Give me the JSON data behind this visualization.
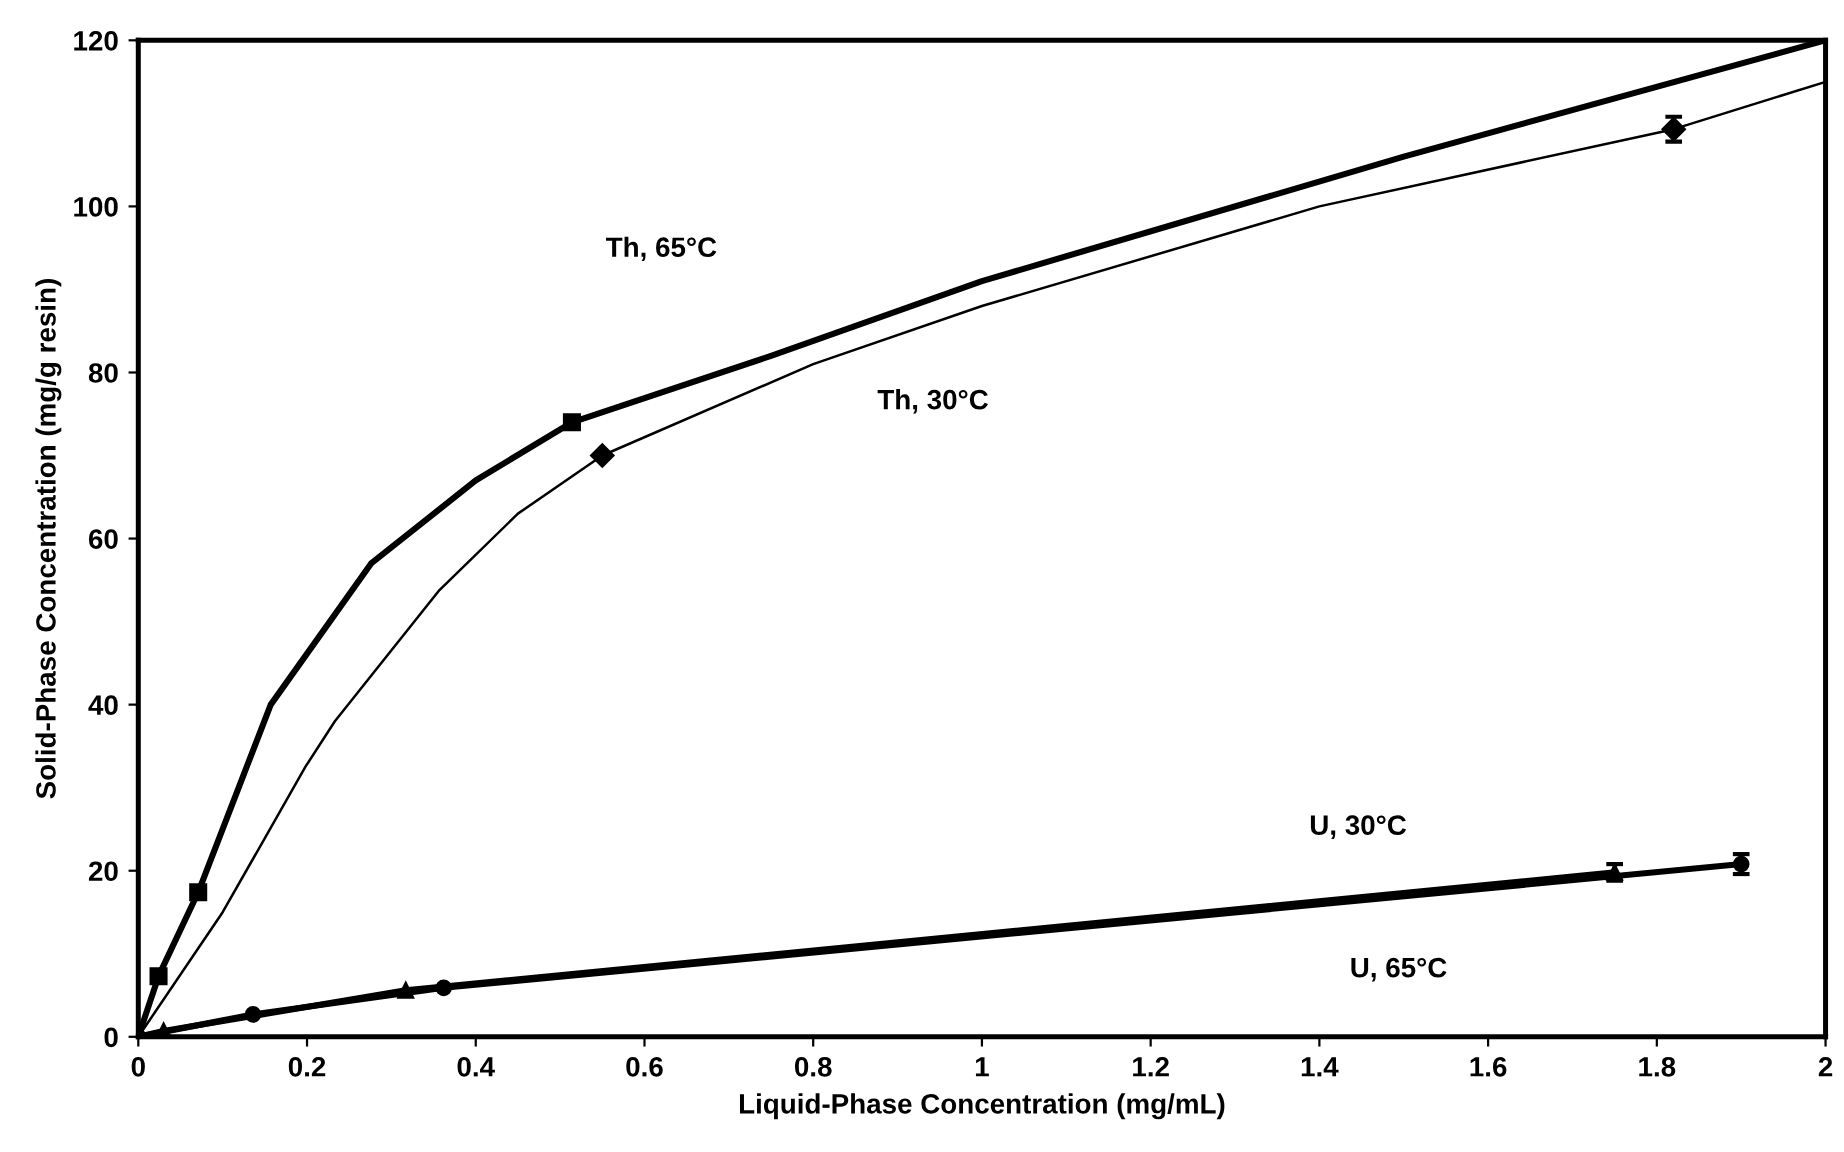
{
  "chart_data": {
    "type": "line",
    "xlabel": "Liquid-Phase Concentration (mg/mL)",
    "ylabel": "Solid-Phase Concentration (mg/g resin)",
    "xlim": [
      0,
      2
    ],
    "ylim": [
      0,
      120
    ],
    "xticks": [
      0,
      0.2,
      0.4,
      0.6,
      0.8,
      1,
      1.2,
      1.4,
      1.6,
      1.8,
      2
    ],
    "yticks": [
      0,
      20,
      40,
      60,
      80,
      100,
      120
    ],
    "grid": false,
    "legend": false,
    "series": [
      {
        "color": "#000000",
        "marker": "none",
        "x": [
          0,
          0.024,
          0.071,
          0.157,
          0.276,
          0.4,
          0.514,
          0.75,
          1.0,
          1.5,
          2.0
        ],
        "values": [
          0,
          7.3,
          17.4,
          40,
          57,
          67,
          74,
          82,
          91,
          106,
          120
        ]
      },
      {
        "type": "scatter",
        "color": "#000000",
        "marker": "square",
        "x": [
          0.024,
          0.071,
          0.514
        ],
        "values": [
          7.3,
          17.4,
          74
        ]
      },
      {
        "color": "#000000",
        "marker": "none",
        "x": [
          0,
          0.1,
          0.198,
          0.233,
          0.357,
          0.45,
          0.55,
          0.8,
          1.0,
          1.4,
          1.82,
          2.0
        ],
        "values": [
          0,
          15,
          32.5,
          38,
          53.8,
          63,
          70,
          81,
          88,
          100,
          109.3,
          115
        ]
      },
      {
        "type": "scatter",
        "color": "#000000",
        "marker": "diamond",
        "x": [
          0.55,
          1.82
        ],
        "values": [
          70,
          109.3
        ],
        "errors": [
          null,
          1.5
        ]
      },
      {
        "color": "#000000",
        "marker": "circle",
        "x": [
          0,
          0.136,
          0.362,
          1.9
        ],
        "values": [
          0,
          2.7,
          5.9,
          20.8
        ],
        "errors": [
          null,
          null,
          null,
          1.2
        ]
      },
      {
        "color": "#000000",
        "marker": "triangle",
        "x": [
          0,
          0.03,
          0.317,
          1.75
        ],
        "values": [
          0,
          0.7,
          5.6,
          19.8
        ],
        "errors": [
          null,
          null,
          null,
          1
        ]
      }
    ],
    "annotations": [
      "Th, 65°C",
      "Th, 30°C",
      "U, 30°C",
      "U, 65°C"
    ]
  }
}
